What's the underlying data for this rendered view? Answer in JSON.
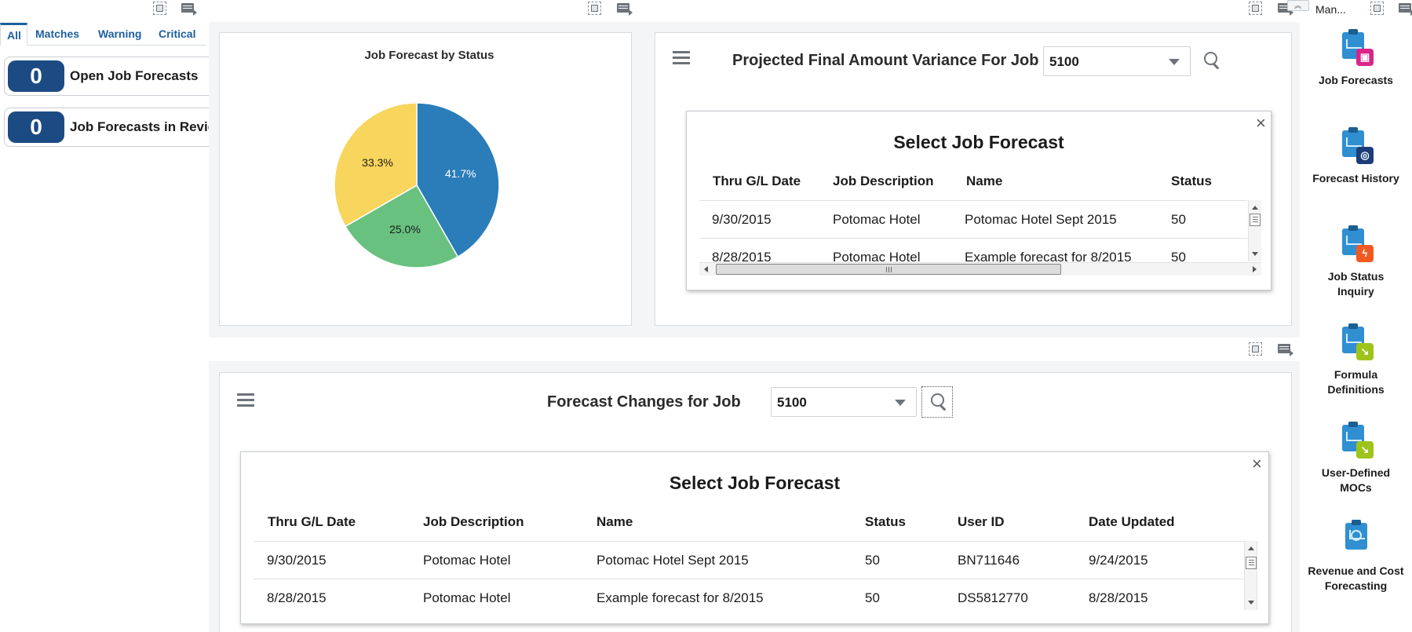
{
  "left": {
    "tabs": [
      {
        "label": "All"
      },
      {
        "label": "Matches"
      },
      {
        "label": "Warning"
      },
      {
        "label": "Critical"
      }
    ],
    "counters": [
      {
        "value": "0",
        "label": "Open Job Forecasts"
      },
      {
        "value": "0",
        "label": "Job Forecasts in Review"
      }
    ]
  },
  "chart_panel": {
    "chart_data": {
      "type": "pie",
      "title": "Job Forecast by Status",
      "slices": [
        {
          "value": 41.7,
          "label": "41.7%",
          "color": "#2a7db9"
        },
        {
          "value": 25.0,
          "label": "25.0%",
          "color": "#68c17f"
        },
        {
          "value": 33.3,
          "label": "33.3%",
          "color": "#f8d55c"
        }
      ]
    }
  },
  "variance_panel": {
    "title": "Projected Final Amount Variance For Job",
    "job_value": "5100",
    "dialog": {
      "title": "Select Job Forecast",
      "close": "×",
      "columns": [
        "Thru G/L Date",
        "Job Description",
        "Name",
        "Status"
      ],
      "rows": [
        [
          "9/30/2015",
          "Potomac Hotel",
          "Potomac Hotel Sept 2015",
          "50"
        ],
        [
          "8/28/2015",
          "Potomac Hotel",
          "Example forecast for 8/2015",
          "50"
        ]
      ]
    }
  },
  "changes_panel": {
    "title": "Forecast Changes for Job",
    "job_value": "5100",
    "dialog": {
      "title": "Select Job Forecast",
      "close": "×",
      "columns": [
        "Thru G/L Date",
        "Job Description",
        "Name",
        "Status",
        "User ID",
        "Date Updated"
      ],
      "rows": [
        [
          "9/30/2015",
          "Potomac Hotel",
          "Potomac Hotel Sept 2015",
          "50",
          "BN711646",
          "9/24/2015"
        ],
        [
          "8/28/2015",
          "Potomac Hotel",
          "Example forecast for 8/2015",
          "50",
          "DS5812770",
          "8/28/2015"
        ]
      ]
    }
  },
  "right": {
    "header_label": "Man...",
    "items": [
      {
        "label": "Job Forecasts",
        "icon": "job-forecasts-icon",
        "badge_color": "#d9258a"
      },
      {
        "label": "Forecast History",
        "icon": "forecast-history-icon",
        "badge_color": "#1c3d78"
      },
      {
        "label": "Job Status Inquiry",
        "icon": "job-status-inquiry-icon",
        "badge_color": "#f05a22"
      },
      {
        "label": "Formula Definitions",
        "icon": "formula-definitions-icon",
        "badge_color": "#9dc41a"
      },
      {
        "label": "User-Defined MOCs",
        "icon": "user-defined-mocs-icon",
        "badge_color": "#9dc41a"
      },
      {
        "label": "Revenue and Cost Forecasting",
        "icon": "revenue-cost-forecasting-icon",
        "badge_color": ""
      }
    ]
  }
}
